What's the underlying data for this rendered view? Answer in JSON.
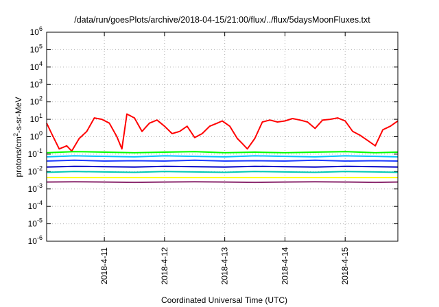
{
  "chart_data": {
    "type": "line",
    "title": "/data/run/goesPlots/archive/2018-04-15/21:00/flux/../flux/5daysMoonFluxes.txt",
    "xlabel": "Coordinated Universal Time (UTC)",
    "ylabel_parts": {
      "pre": "protons/cm",
      "sup": "2",
      "post": "-s-sr-MeV"
    },
    "y_scale": "log",
    "ylim_exponent": [
      -6,
      6
    ],
    "y_tick_labels": [
      {
        "base": "10",
        "exp": "-6"
      },
      {
        "base": "10",
        "exp": "-5"
      },
      {
        "base": "10",
        "exp": "-4"
      },
      {
        "base": "10",
        "exp": "-3"
      },
      {
        "base": "10",
        "exp": "-2"
      },
      {
        "base": "10",
        "exp": "-1"
      },
      {
        "base": "10",
        "exp": "0"
      },
      {
        "base": "10",
        "exp": "1"
      },
      {
        "base": "10",
        "exp": "2"
      },
      {
        "base": "10",
        "exp": "3"
      },
      {
        "base": "10",
        "exp": "4"
      },
      {
        "base": "10",
        "exp": "5"
      },
      {
        "base": "10",
        "exp": "6"
      }
    ],
    "x_range": [
      "2018-04-10 01:00",
      "2018-04-15 21:00"
    ],
    "x_ticks": [
      "2018-4-11",
      "2018-4-12",
      "2018-4-13",
      "2018-4-14",
      "2018-4-15"
    ],
    "grid": true,
    "series": [
      {
        "color": "#ff0000",
        "x": [
          "2018-04-10 01:00",
          "2018-04-10 03:00",
          "2018-04-10 06:00",
          "2018-04-10 09:00",
          "2018-04-10 11:00",
          "2018-04-10 14:00",
          "2018-04-10 17:00",
          "2018-04-10 20:00",
          "2018-04-10 23:00",
          "2018-04-11 02:00",
          "2018-04-11 05:00",
          "2018-04-11 07:00",
          "2018-04-11 09:00",
          "2018-04-11 12:00",
          "2018-04-11 15:00",
          "2018-04-11 18:00",
          "2018-04-11 21:00",
          "2018-04-12 00:00",
          "2018-04-12 03:00",
          "2018-04-12 06:00",
          "2018-04-12 09:00",
          "2018-04-12 12:00",
          "2018-04-12 15:00",
          "2018-04-12 18:00",
          "2018-04-12 21:00",
          "2018-04-12 23:00",
          "2018-04-13 02:00",
          "2018-04-13 05:00",
          "2018-04-13 07:00",
          "2018-04-13 09:00",
          "2018-04-13 12:00",
          "2018-04-13 15:00",
          "2018-04-13 18:00",
          "2018-04-13 21:00",
          "2018-04-14 00:00",
          "2018-04-14 03:00",
          "2018-04-14 06:00",
          "2018-04-14 09:00",
          "2018-04-14 12:00",
          "2018-04-14 15:00",
          "2018-04-14 18:00",
          "2018-04-14 21:00",
          "2018-04-15 00:00",
          "2018-04-15 03:00",
          "2018-04-15 06:00",
          "2018-04-15 09:00",
          "2018-04-15 12:00",
          "2018-04-15 15:00",
          "2018-04-15 18:00",
          "2018-04-15 21:00"
        ],
        "values": [
          6,
          1.5,
          0.2,
          0.3,
          0.15,
          0.8,
          2,
          12,
          10,
          6,
          1,
          0.2,
          20,
          12,
          2,
          6,
          9,
          4,
          1.5,
          2,
          4,
          0.9,
          1.5,
          4,
          6,
          8,
          4,
          0.8,
          0.4,
          0.2,
          0.8,
          7,
          9,
          7,
          8,
          11,
          9,
          7,
          3,
          9,
          10,
          12,
          8,
          2,
          1.2,
          0.6,
          0.3,
          2.5,
          4,
          8
        ]
      },
      {
        "color": "#00ff00",
        "x": [
          "2018-04-10 01:00",
          "2018-04-10 12:00",
          "2018-04-11 00:00",
          "2018-04-11 12:00",
          "2018-04-12 00:00",
          "2018-04-12 12:00",
          "2018-04-13 00:00",
          "2018-04-13 12:00",
          "2018-04-14 00:00",
          "2018-04-14 12:00",
          "2018-04-15 00:00",
          "2018-04-15 12:00",
          "2018-04-15 21:00"
        ],
        "values": [
          0.12,
          0.14,
          0.13,
          0.12,
          0.13,
          0.14,
          0.12,
          0.13,
          0.12,
          0.13,
          0.14,
          0.12,
          0.13
        ]
      },
      {
        "color": "#00bfff",
        "x": [
          "2018-04-10 01:00",
          "2018-04-10 12:00",
          "2018-04-11 00:00",
          "2018-04-11 12:00",
          "2018-04-12 00:00",
          "2018-04-12 12:00",
          "2018-04-13 00:00",
          "2018-04-13 12:00",
          "2018-04-14 00:00",
          "2018-04-14 12:00",
          "2018-04-15 00:00",
          "2018-04-15 12:00",
          "2018-04-15 21:00"
        ],
        "values": [
          0.07,
          0.08,
          0.075,
          0.07,
          0.08,
          0.075,
          0.07,
          0.08,
          0.075,
          0.07,
          0.08,
          0.075,
          0.07
        ]
      },
      {
        "color": "#1e3cff",
        "x": [
          "2018-04-10 01:00",
          "2018-04-10 12:00",
          "2018-04-11 00:00",
          "2018-04-11 12:00",
          "2018-04-12 00:00",
          "2018-04-12 12:00",
          "2018-04-13 00:00",
          "2018-04-13 12:00",
          "2018-04-14 00:00",
          "2018-04-14 12:00",
          "2018-04-15 00:00",
          "2018-04-15 12:00",
          "2018-04-15 21:00"
        ],
        "values": [
          0.04,
          0.045,
          0.04,
          0.042,
          0.04,
          0.045,
          0.04,
          0.042,
          0.04,
          0.045,
          0.04,
          0.042,
          0.04
        ]
      },
      {
        "color": "#0000c8",
        "x": [
          "2018-04-10 01:00",
          "2018-04-10 12:00",
          "2018-04-11 00:00",
          "2018-04-11 12:00",
          "2018-04-12 00:00",
          "2018-04-12 12:00",
          "2018-04-13 00:00",
          "2018-04-13 12:00",
          "2018-04-14 00:00",
          "2018-04-14 12:00",
          "2018-04-15 00:00",
          "2018-04-15 12:00",
          "2018-04-15 21:00"
        ],
        "values": [
          0.018,
          0.02,
          0.019,
          0.018,
          0.02,
          0.019,
          0.018,
          0.02,
          0.019,
          0.018,
          0.02,
          0.019,
          0.018
        ]
      },
      {
        "color": "#00c8b4",
        "x": [
          "2018-04-10 01:00",
          "2018-04-10 12:00",
          "2018-04-11 00:00",
          "2018-04-11 12:00",
          "2018-04-12 00:00",
          "2018-04-12 12:00",
          "2018-04-13 00:00",
          "2018-04-13 12:00",
          "2018-04-14 00:00",
          "2018-04-14 12:00",
          "2018-04-15 00:00",
          "2018-04-15 12:00",
          "2018-04-15 21:00"
        ],
        "values": [
          0.009,
          0.01,
          0.0095,
          0.009,
          0.01,
          0.0095,
          0.009,
          0.01,
          0.0095,
          0.009,
          0.01,
          0.0095,
          0.009
        ]
      },
      {
        "color": "#ffff00",
        "x": [
          "2018-04-10 01:00",
          "2018-04-10 12:00",
          "2018-04-11 00:00",
          "2018-04-11 12:00",
          "2018-04-12 00:00",
          "2018-04-12 12:00",
          "2018-04-13 00:00",
          "2018-04-13 12:00",
          "2018-04-14 00:00",
          "2018-04-14 12:00",
          "2018-04-15 00:00",
          "2018-04-15 12:00",
          "2018-04-15 21:00"
        ],
        "values": [
          0.0045,
          0.0045,
          0.0045,
          0.0045,
          0.0045,
          0.0045,
          0.0045,
          0.0045,
          0.0045,
          0.0045,
          0.0045,
          0.0045,
          0.0045
        ]
      },
      {
        "color": "#8b2a6e",
        "x": [
          "2018-04-10 01:00",
          "2018-04-10 12:00",
          "2018-04-11 00:00",
          "2018-04-11 12:00",
          "2018-04-12 00:00",
          "2018-04-12 12:00",
          "2018-04-13 00:00",
          "2018-04-13 12:00",
          "2018-04-14 00:00",
          "2018-04-14 12:00",
          "2018-04-15 00:00",
          "2018-04-15 12:00",
          "2018-04-15 21:00"
        ],
        "values": [
          0.0025,
          0.0026,
          0.0025,
          0.0024,
          0.0025,
          0.0026,
          0.0025,
          0.0024,
          0.0025,
          0.0026,
          0.0025,
          0.0024,
          0.0025
        ]
      }
    ]
  }
}
